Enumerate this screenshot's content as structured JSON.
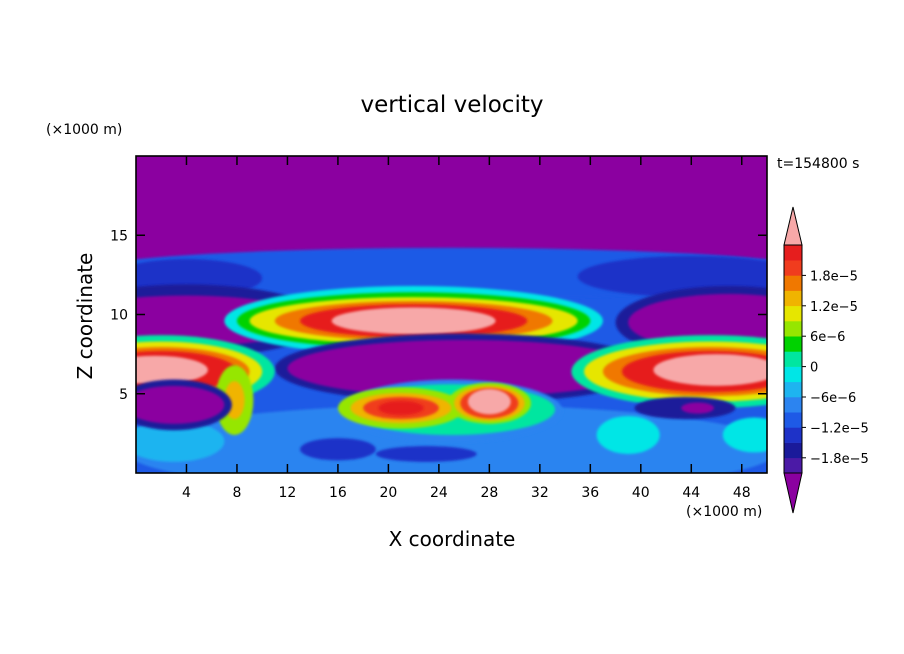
{
  "chart_data": {
    "type": "heatmap",
    "title": "vertical velocity",
    "xlabel": "X coordinate",
    "ylabel": "Z coordinate",
    "x_unit": "(×1000 m)",
    "y_unit": "(×1000 m)",
    "time_label": "t=154800 s",
    "xlim": [
      0,
      50
    ],
    "ylim": [
      0,
      20
    ],
    "x_ticks": [
      "4",
      "8",
      "12",
      "16",
      "20",
      "24",
      "28",
      "32",
      "36",
      "40",
      "44",
      "48"
    ],
    "y_ticks": [
      "5",
      "10",
      "15"
    ],
    "colorbar": {
      "extend": "both",
      "tick_labels": [
        "1.8e-5",
        "1.2e-5",
        "6e-6",
        "0",
        "-6e-6",
        "-1.2e-5",
        "-1.8e-5"
      ],
      "levels_low_to_high": [
        -2.1e-05,
        -1.8e-05,
        -1.5e-05,
        -1.2e-05,
        -9e-06,
        -6e-06,
        -3e-06,
        0,
        3e-06,
        6e-06,
        9e-06,
        1.2e-05,
        1.5e-05,
        1.8e-05,
        2.1e-05
      ],
      "colors_low_to_high": [
        "#8b00a0",
        "#4b1aa6",
        "#1a1a9a",
        "#1e32c8",
        "#1e5ae6",
        "#2c84f0",
        "#1eb4f0",
        "#00e6e6",
        "#00e6a0",
        "#00d200",
        "#96e600",
        "#e6e600",
        "#f0b400",
        "#f07800",
        "#f03c1e",
        "#e61e1e",
        "#f7a8a8"
      ]
    },
    "features": [
      {
        "name": "upper-level uniform downdraft",
        "x_range": [
          0,
          50
        ],
        "z_range": [
          12.5,
          20
        ],
        "value": "< -1.8e-5"
      },
      {
        "name": "updraft core mid",
        "x_center": 22,
        "z_center": 9.5,
        "value": "> 2.1e-5"
      },
      {
        "name": "updraft core left",
        "x_center": 1.5,
        "z_center": 6.5,
        "value": "> 2.1e-5"
      },
      {
        "name": "updraft core right",
        "x_center": 45,
        "z_center": 6.5,
        "value": "> 2.1e-5"
      },
      {
        "name": "updraft core low",
        "x_center": 27.5,
        "z_center": 4.5,
        "value": "> 2.1e-5"
      },
      {
        "name": "downdraft band",
        "x_range": [
          12,
          40
        ],
        "z_range": [
          5.5,
          7.8
        ],
        "value": "< -1.8e-5"
      },
      {
        "name": "downdraft cell left low",
        "x_center": 3,
        "z_center": 4.3,
        "value": "< -1.8e-5"
      }
    ]
  }
}
